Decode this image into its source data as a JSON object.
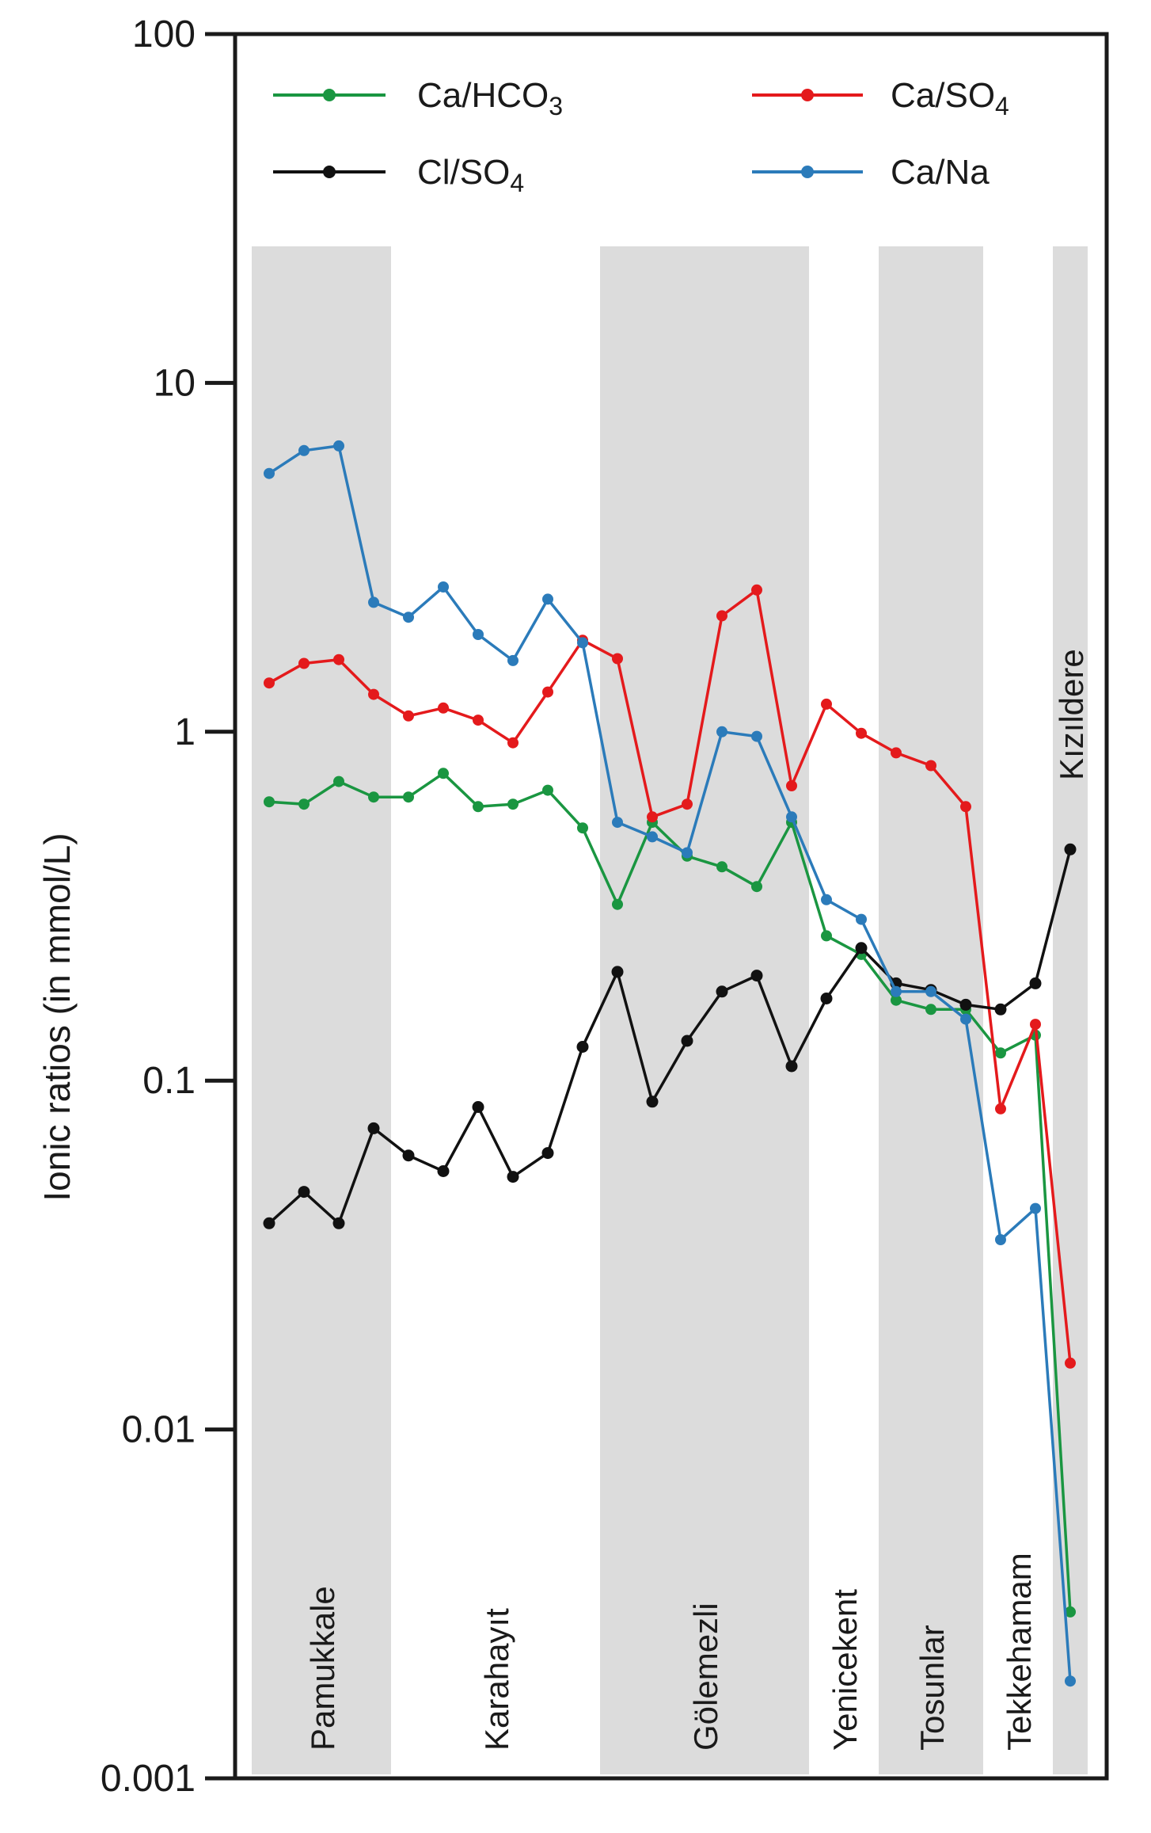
{
  "chart_data": {
    "type": "line",
    "ylabel": "Ionic ratios (in mmol/L)",
    "yscale": "log",
    "ylim": [
      0.001,
      100
    ],
    "yticks": [
      {
        "value": 100,
        "label": "100"
      },
      {
        "value": 10,
        "label": "10"
      },
      {
        "value": 1,
        "label": "1"
      },
      {
        "value": 0.1,
        "label": "0.1"
      },
      {
        "value": 0.01,
        "label": "0.01"
      },
      {
        "value": 0.001,
        "label": "0.001"
      }
    ],
    "x_count": 24,
    "grid": false,
    "legend_position": "top",
    "groups": [
      {
        "name": "Pamukkale",
        "start": 1,
        "end": 4,
        "shaded": true
      },
      {
        "name": "Karahayıt",
        "start": 5,
        "end": 10,
        "shaded": false
      },
      {
        "name": "Gölemezli",
        "start": 11,
        "end": 16,
        "shaded": true
      },
      {
        "name": "Yenicekent",
        "start": 17,
        "end": 18,
        "shaded": false
      },
      {
        "name": "Tosunlar",
        "start": 19,
        "end": 21,
        "shaded": true
      },
      {
        "name": "Tekkehamam",
        "start": 22,
        "end": 23,
        "shaded": false
      },
      {
        "name": "Kızıldere",
        "start": 24,
        "end": 24,
        "shaded": true
      }
    ],
    "series": [
      {
        "name": "Ca/HCO",
        "subscript": "3",
        "color": "#1a9641",
        "values": [
          0.63,
          0.62,
          0.72,
          0.65,
          0.65,
          0.76,
          0.61,
          0.62,
          0.68,
          0.53,
          0.32,
          0.55,
          0.44,
          0.41,
          0.36,
          0.55,
          0.26,
          0.23,
          0.17,
          0.16,
          0.16,
          0.12,
          0.135,
          0.003
        ]
      },
      {
        "name": "Ca/SO",
        "subscript": "4",
        "color": "#e41a1c",
        "values": [
          1.38,
          1.57,
          1.61,
          1.28,
          1.11,
          1.17,
          1.08,
          0.93,
          1.3,
          1.83,
          1.62,
          0.57,
          0.62,
          2.15,
          2.55,
          0.7,
          1.2,
          0.99,
          0.87,
          0.8,
          0.61,
          0.083,
          0.145,
          0.0155
        ]
      },
      {
        "name": "Cl/SO",
        "subscript": "4",
        "color": "#111111",
        "values": [
          0.039,
          0.048,
          0.039,
          0.073,
          0.061,
          0.055,
          0.084,
          0.053,
          0.062,
          0.125,
          0.205,
          0.087,
          0.13,
          0.18,
          0.2,
          0.11,
          0.172,
          0.24,
          0.19,
          0.182,
          0.165,
          0.16,
          0.19,
          0.46
        ]
      },
      {
        "name": "Ca/Na",
        "subscript": "",
        "color": "#2b7bba",
        "values": [
          5.5,
          6.4,
          6.6,
          2.35,
          2.13,
          2.6,
          1.9,
          1.6,
          2.4,
          1.8,
          0.55,
          0.5,
          0.45,
          1.0,
          0.97,
          0.57,
          0.33,
          0.29,
          0.18,
          0.18,
          0.15,
          0.035,
          0.043,
          0.0019
        ]
      }
    ]
  }
}
